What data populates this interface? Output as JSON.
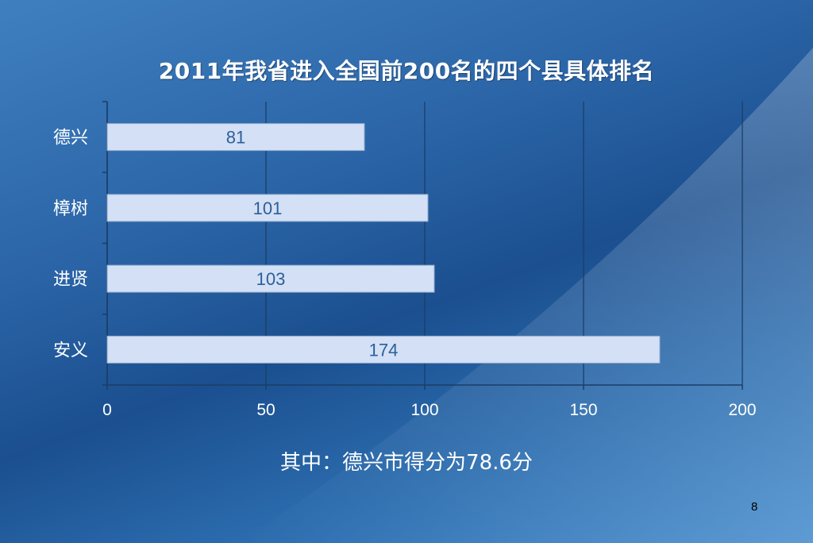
{
  "slide": {
    "page_number": "8",
    "footnote": "其中：德兴市得分为78.6分"
  },
  "chart_data": {
    "type": "bar",
    "orientation": "horizontal",
    "title": "2011年我省进入全国前200名的四个县具体排名",
    "categories": [
      "德兴",
      "樟树",
      "进贤",
      "安义"
    ],
    "values": [
      81,
      101,
      103,
      174
    ],
    "xlim": [
      0,
      200
    ],
    "xticks": [
      "0",
      "50",
      "100",
      "150",
      "200"
    ],
    "grid": true,
    "data_labels": true,
    "bar_color": "#d3e0f5",
    "label_color": "#2d5f9a"
  }
}
